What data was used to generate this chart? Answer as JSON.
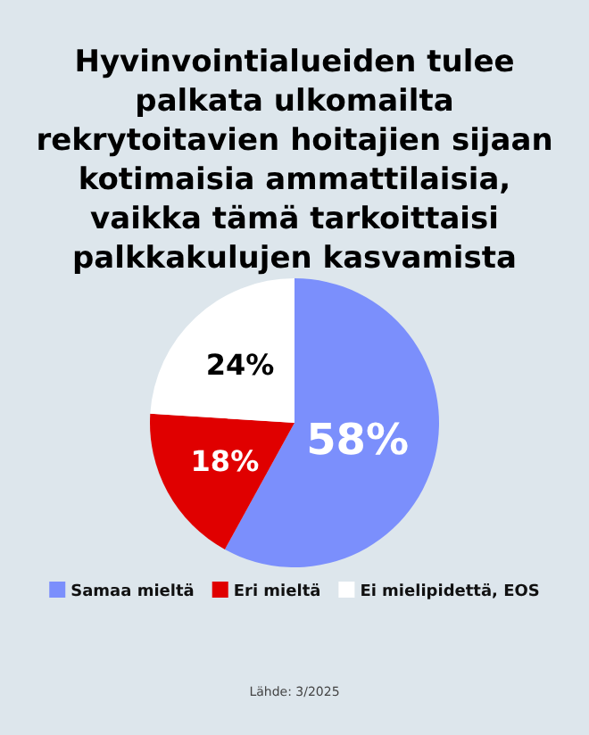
{
  "chart_data": {
    "type": "pie",
    "title": "Hyvinvointialueiden tulee palkata ulkomailta rekrytoitavien hoitajien sijaan kotimaisia ammattilaisia, vaikka tämä tarkoittaisi palkkakulujen kasvamista",
    "categories": [
      "Samaa mieltä",
      "Eri mieltä",
      "Ei mielipidettä, EOS"
    ],
    "values": [
      58,
      18,
      24
    ],
    "colors": [
      "#7b8ffc",
      "#e00000",
      "#ffffff"
    ],
    "value_labels": [
      "58%",
      "18%",
      "24%"
    ],
    "legend": "bottom",
    "annotations": [
      "Lähde: 3/2025"
    ]
  }
}
